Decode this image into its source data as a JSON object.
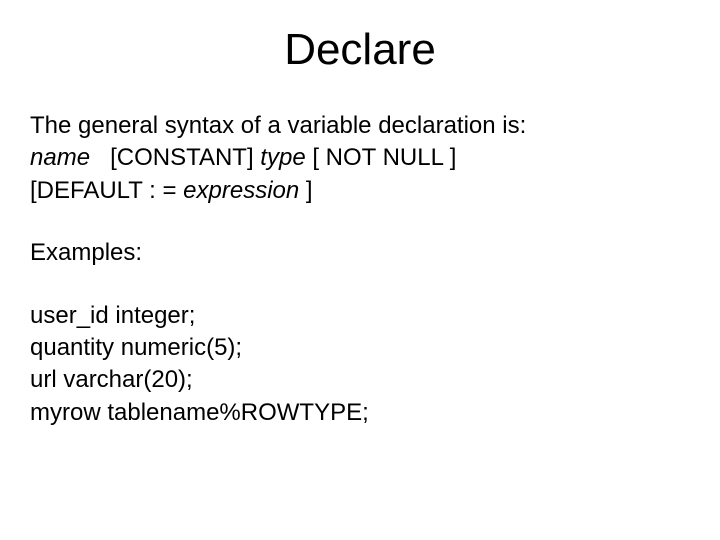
{
  "title": "Declare",
  "syntax": {
    "intro": "The general syntax of a variable declaration is:",
    "name": "name",
    "constant": "[CONSTANT]",
    "type": "type",
    "notnull": "[ NOT NULL ]",
    "default_open": "[DEFAULT : =",
    "expression": "expression",
    "default_close": "]"
  },
  "examples_label": "Examples:",
  "examples": [
    "user_id integer;",
    "quantity numeric(5);",
    "url varchar(20);",
    "myrow tablename%ROWTYPE;"
  ],
  "colors": {
    "background": "#ffffff",
    "text": "#000000"
  },
  "typography": {
    "title_fontsize": 44,
    "body_fontsize": 24,
    "font_family": "Comic Sans MS"
  }
}
